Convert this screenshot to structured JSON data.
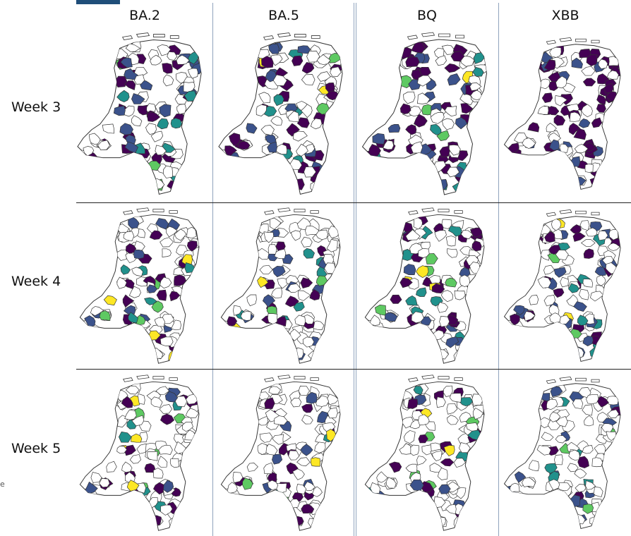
{
  "columns": [
    "BA.2",
    "BA.5",
    "BQ",
    "XBB"
  ],
  "rows": [
    "Week 3",
    "Week 4",
    "Week 5"
  ],
  "colors": {
    "outline": "#333333",
    "palette": [
      "#440154",
      "#3b528b",
      "#21918c",
      "#5ec962",
      "#fde725"
    ]
  },
  "stray_mark": "e"
}
